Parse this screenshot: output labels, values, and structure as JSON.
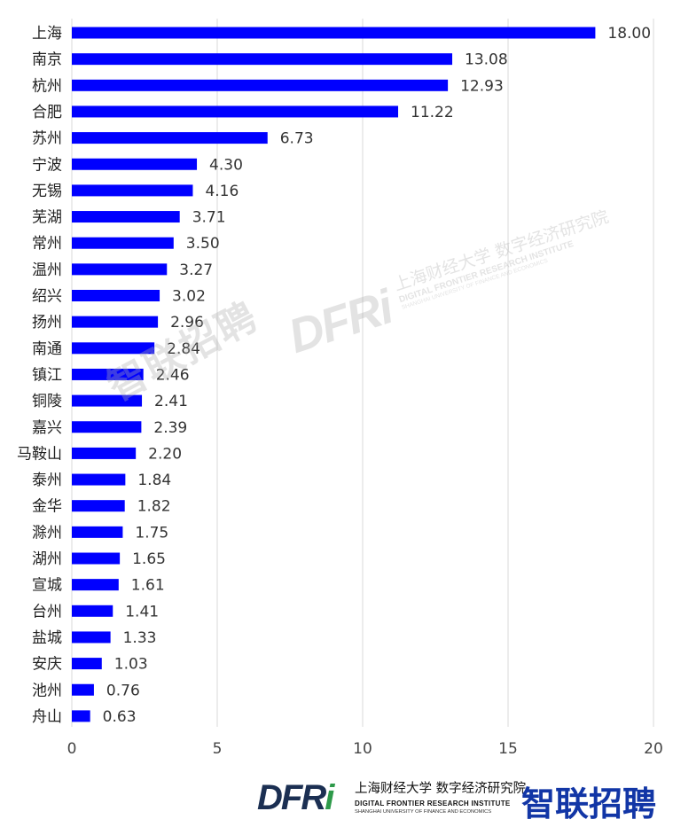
{
  "chart_data": {
    "type": "bar",
    "orientation": "horizontal",
    "categories": [
      "上海",
      "南京",
      "杭州",
      "合肥",
      "苏州",
      "宁波",
      "无锡",
      "芜湖",
      "常州",
      "温州",
      "绍兴",
      "扬州",
      "南通",
      "镇江",
      "铜陵",
      "嘉兴",
      "马鞍山",
      "泰州",
      "金华",
      "滁州",
      "湖州",
      "宣城",
      "台州",
      "盐城",
      "安庆",
      "池州",
      "舟山"
    ],
    "values": [
      18.0,
      13.08,
      12.93,
      11.22,
      6.73,
      4.3,
      4.16,
      3.71,
      3.5,
      3.27,
      3.02,
      2.96,
      2.84,
      2.46,
      2.41,
      2.39,
      2.2,
      1.84,
      1.82,
      1.75,
      1.65,
      1.61,
      1.41,
      1.33,
      1.03,
      0.76,
      0.63
    ],
    "value_labels": [
      "18.00",
      "13.08",
      "12.93",
      "11.22",
      "6.73",
      "4.30",
      "4.16",
      "3.71",
      "3.50",
      "3.27",
      "3.02",
      "2.96",
      "2.84",
      "2.46",
      "2.41",
      "2.39",
      "2.20",
      "1.84",
      "1.82",
      "1.75",
      "1.65",
      "1.61",
      "1.41",
      "1.33",
      "1.03",
      "0.76",
      "0.63"
    ],
    "xlim": [
      0,
      20
    ],
    "xticks": [
      "0",
      "5",
      "10",
      "15",
      "20"
    ],
    "title": "",
    "xlabel": "",
    "ylabel": "",
    "bar_color": "#0000ff",
    "grid": "vertical"
  },
  "watermarks": {
    "zhilian": "智联招聘",
    "dfri_logo": "DFRi",
    "dfri_cn": "上海财经大学 数字经济研究院",
    "dfri_en": "DIGITAL FRONTIER RESEARCH INSTITUTE",
    "dfri_en_sub": "SHANGHAI UNIVERSITY OF FINANCE AND ECONOMICS"
  },
  "footer": {
    "dfri_logo_main": "DFR",
    "dfri_logo_i": "i",
    "dfri_cn": "上海财经大学 数字经济研究院",
    "dfri_en": "DIGITAL FRONTIER RESEARCH INSTITUTE",
    "dfri_en_sub": "SHANGHAI UNIVERSITY OF FINANCE AND ECONOMICS",
    "zhilian": "智联招聘",
    "zhilian_color": "#1236a6",
    "dfri_color": "#1b2f52",
    "dfri_i_color": "#2e9a4a"
  }
}
